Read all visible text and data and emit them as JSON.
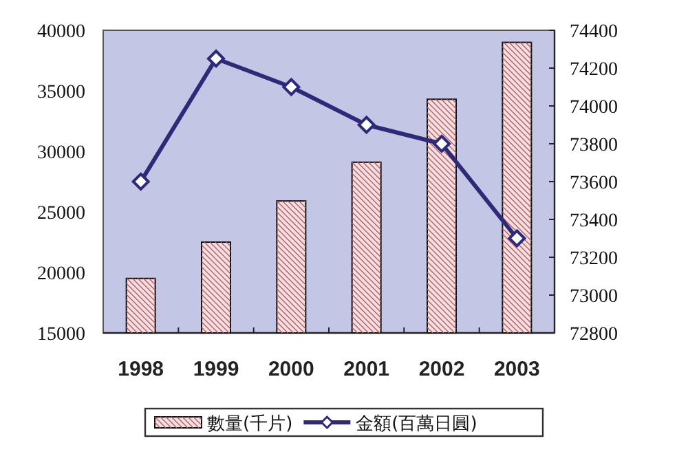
{
  "chart_data": {
    "type": "bar",
    "categories": [
      "1998",
      "1999",
      "2000",
      "2001",
      "2002",
      "2003"
    ],
    "series": [
      {
        "name": "數量(千片)",
        "color": "#f4dede",
        "values": [
          19500,
          22500,
          25900,
          29100,
          34300,
          39000
        ]
      },
      {
        "name": "金額(百萬日圓)",
        "type": "line",
        "axis": "y2",
        "color": "#2e2a78",
        "values": [
          73600,
          74250,
          74100,
          73900,
          73800,
          73300
        ]
      }
    ],
    "ylim": [
      15000,
      40000
    ],
    "yticks": [
      15000,
      20000,
      25000,
      30000,
      35000,
      40000
    ],
    "y2lim": [
      72800,
      74400
    ],
    "y2ticks": [
      72800,
      73000,
      73200,
      73400,
      73600,
      73800,
      74000,
      74200,
      74400
    ],
    "legend": "bottom",
    "marker": "diamond",
    "grid": false
  }
}
